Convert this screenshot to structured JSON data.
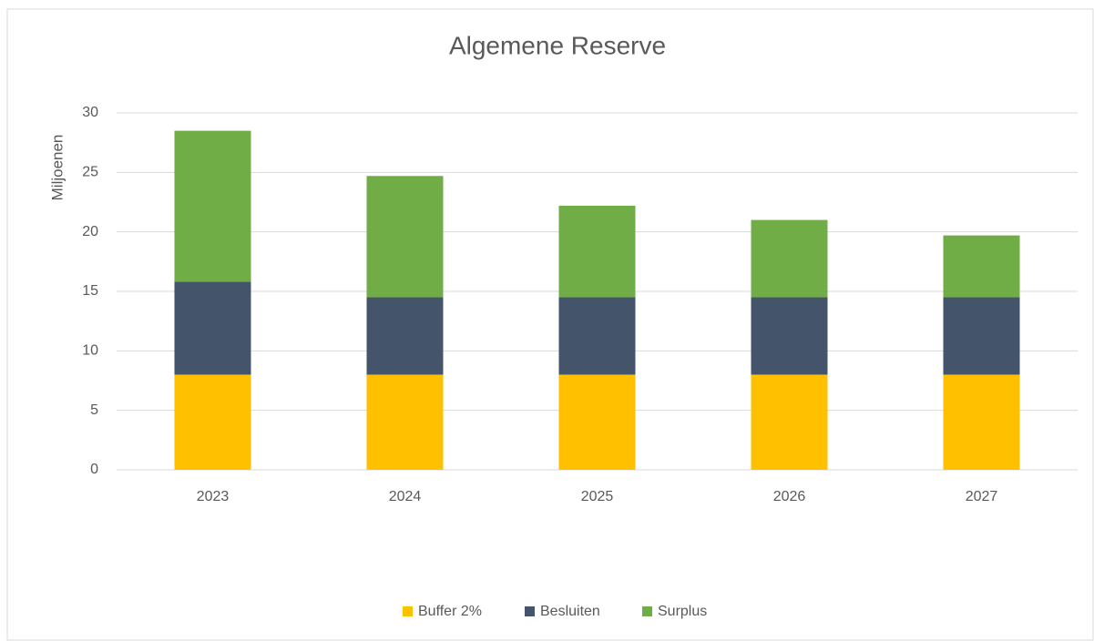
{
  "chart_data": {
    "type": "stacked_bar",
    "title": "Algemene Reserve",
    "y_label": "Miljoenen",
    "categories": [
      "2023",
      "2024",
      "2025",
      "2026",
      "2027"
    ],
    "series": [
      {
        "name": "Buffer 2%",
        "color": "#FFC000",
        "values": [
          8,
          8,
          8,
          8,
          8
        ]
      },
      {
        "name": "Besluiten",
        "color": "#44546A",
        "values": [
          7.8,
          6.5,
          6.5,
          6.5,
          6.5
        ]
      },
      {
        "name": "Surplus",
        "color": "#70AD47",
        "values": [
          12.7,
          10.2,
          7.7,
          6.5,
          5.2
        ]
      }
    ],
    "ylim": [
      0,
      30
    ],
    "yticks": [
      0,
      5,
      10,
      15,
      20,
      25,
      30
    ],
    "grid": true,
    "legend": "bottom"
  }
}
